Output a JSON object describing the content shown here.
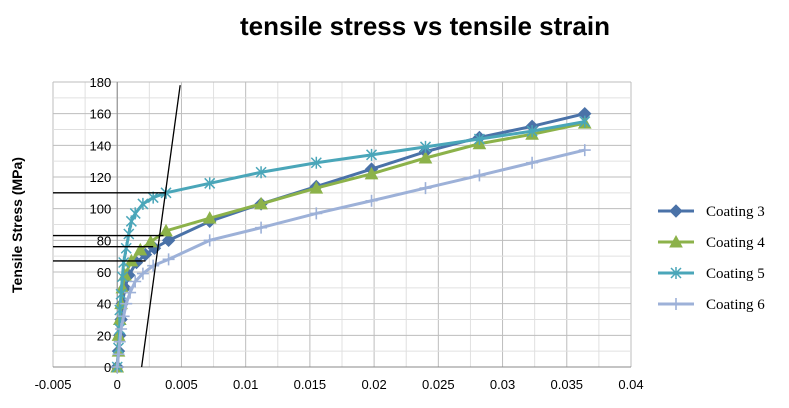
{
  "chart_data": {
    "type": "line",
    "title": "tensile stress vs tensile strain",
    "xlabel": "",
    "ylabel": "Tensile Stress (MPa)",
    "xlim": [
      -0.005,
      0.04
    ],
    "ylim": [
      0,
      180
    ],
    "x_ticks": [
      "-0.005",
      "0",
      "0.005",
      "0.01",
      "0.015",
      "0.02",
      "0.025",
      "0.03",
      "0.035",
      "0.04"
    ],
    "y_ticks": [
      "0",
      "20",
      "40",
      "60",
      "80",
      "100",
      "120",
      "140",
      "160",
      "180"
    ],
    "grid": true,
    "legend_position": "right",
    "series": [
      {
        "name": "Coating 3",
        "color": "#4a72a8",
        "marker": "diamond",
        "points": [
          [
            0,
            0
          ],
          [
            0.0001,
            10
          ],
          [
            0.0002,
            20
          ],
          [
            0.0003,
            30
          ],
          [
            0.0004,
            40
          ],
          [
            0.0006,
            50
          ],
          [
            0.0009,
            58
          ],
          [
            0.0015,
            66
          ],
          [
            0.0022,
            71
          ],
          [
            0.0029,
            75
          ],
          [
            0.004,
            80
          ],
          [
            0.0072,
            92
          ],
          [
            0.0112,
            103
          ],
          [
            0.0155,
            114
          ],
          [
            0.0198,
            125
          ],
          [
            0.024,
            136
          ],
          [
            0.0282,
            145
          ],
          [
            0.0323,
            152
          ],
          [
            0.0364,
            160
          ]
        ]
      },
      {
        "name": "Coating 4",
        "color": "#8cb24a",
        "marker": "triangle",
        "points": [
          [
            0,
            0
          ],
          [
            0.0001,
            10
          ],
          [
            0.0001,
            20
          ],
          [
            0.0002,
            30
          ],
          [
            0.0003,
            40
          ],
          [
            0.0004,
            50
          ],
          [
            0.0006,
            58
          ],
          [
            0.0011,
            67
          ],
          [
            0.0018,
            74
          ],
          [
            0.0026,
            79
          ],
          [
            0.0038,
            86
          ],
          [
            0.0072,
            94
          ],
          [
            0.0112,
            103
          ],
          [
            0.0155,
            113
          ],
          [
            0.0198,
            122
          ],
          [
            0.024,
            132
          ],
          [
            0.0282,
            141
          ],
          [
            0.0323,
            147
          ],
          [
            0.0364,
            154
          ]
        ]
      },
      {
        "name": "Coating 5",
        "color": "#4aa6b9",
        "marker": "star",
        "points": [
          [
            0,
            0
          ],
          [
            0.0001,
            12
          ],
          [
            0.0002,
            24
          ],
          [
            0.0002,
            36
          ],
          [
            0.0003,
            46
          ],
          [
            0.0004,
            57
          ],
          [
            0.0005,
            66
          ],
          [
            0.0007,
            75
          ],
          [
            0.0009,
            84
          ],
          [
            0.0011,
            92
          ],
          [
            0.0014,
            97
          ],
          [
            0.002,
            103
          ],
          [
            0.0028,
            107
          ],
          [
            0.0038,
            110
          ],
          [
            0.0072,
            116
          ],
          [
            0.0112,
            123
          ],
          [
            0.0155,
            129
          ],
          [
            0.0198,
            134
          ],
          [
            0.024,
            139
          ],
          [
            0.0282,
            144
          ],
          [
            0.0323,
            149
          ],
          [
            0.0364,
            155
          ]
        ]
      },
      {
        "name": "Coating 6",
        "color": "#9db1d8",
        "marker": "plus",
        "points": [
          [
            0,
            0
          ],
          [
            0.0001,
            8
          ],
          [
            0.0002,
            16
          ],
          [
            0.0003,
            24
          ],
          [
            0.0005,
            32
          ],
          [
            0.0007,
            40
          ],
          [
            0.001,
            47
          ],
          [
            0.0014,
            54
          ],
          [
            0.002,
            59
          ],
          [
            0.0028,
            64
          ],
          [
            0.004,
            68
          ],
          [
            0.0072,
            80
          ],
          [
            0.0112,
            88
          ],
          [
            0.0155,
            97
          ],
          [
            0.0198,
            105
          ],
          [
            0.024,
            113
          ],
          [
            0.0282,
            121
          ],
          [
            0.0323,
            129
          ],
          [
            0.0364,
            137
          ]
        ]
      }
    ],
    "annotation_lines": {
      "tangent": [
        [
          0.0019,
          0
        ],
        [
          0.0049,
          178
        ]
      ],
      "yield_levels": [
        {
          "y": 110,
          "x_end": 0.0038
        },
        {
          "y": 83,
          "x_end": 0.0036
        },
        {
          "y": 76,
          "x_end": 0.0028
        },
        {
          "y": 67,
          "x_end": 0.0022
        }
      ]
    }
  }
}
